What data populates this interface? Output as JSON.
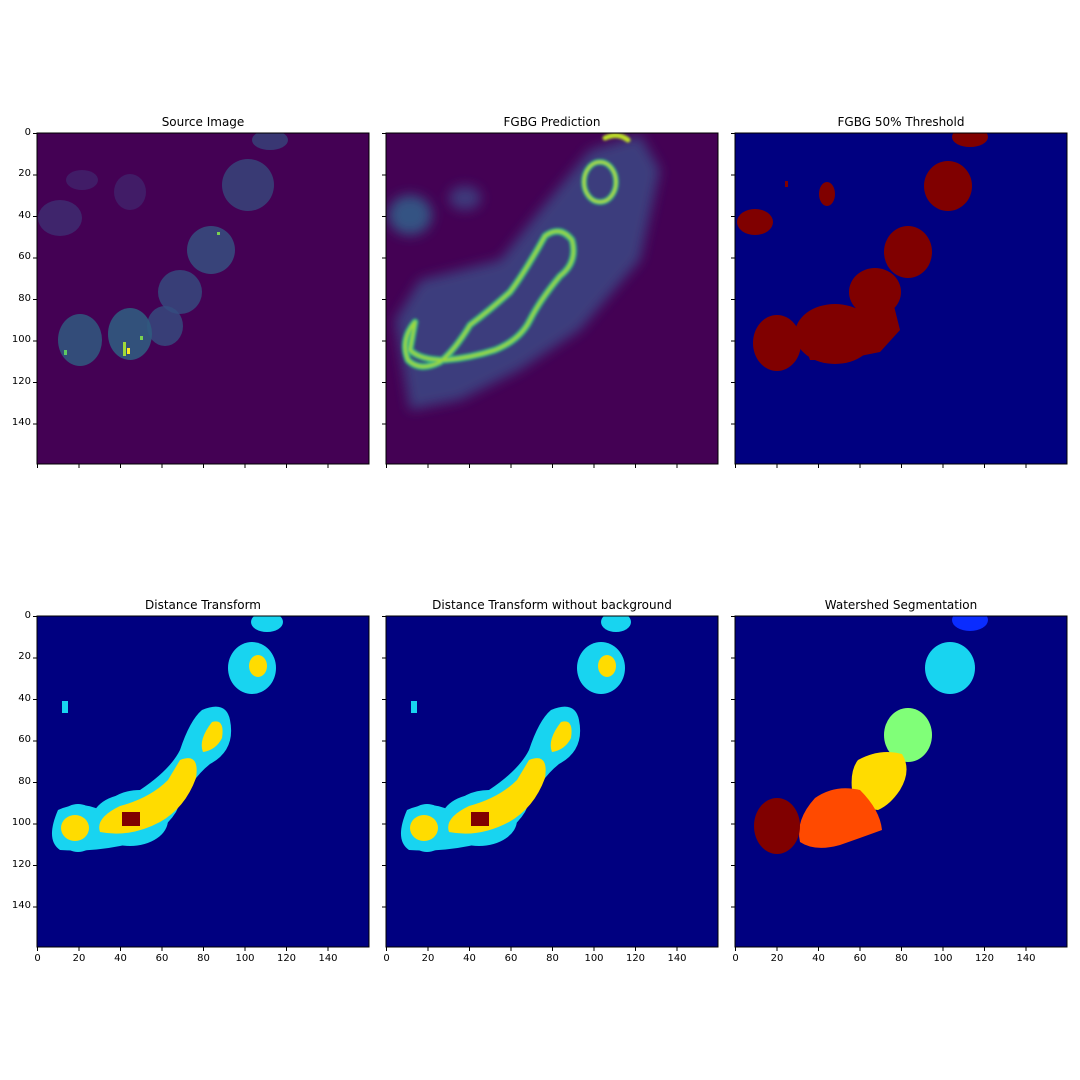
{
  "figure": {
    "panels": [
      {
        "title": "Source Image",
        "colormap": "viridis",
        "content": "source"
      },
      {
        "title": "FGBG Prediction",
        "colormap": "viridis",
        "content": "prediction"
      },
      {
        "title": "FGBG 50% Threshold",
        "colormap": "jet",
        "content": "threshold"
      },
      {
        "title": "Distance Transform",
        "colormap": "jet",
        "content": "distance"
      },
      {
        "title": "Distance Transform without background",
        "colormap": "jet",
        "content": "distance_nobg"
      },
      {
        "title": "Watershed Segmentation",
        "colormap": "jet",
        "content": "watershed"
      }
    ],
    "y_ticks": [
      "0",
      "20",
      "40",
      "60",
      "80",
      "100",
      "120",
      "140"
    ],
    "x_ticks": [
      "0",
      "20",
      "40",
      "60",
      "80",
      "100",
      "120",
      "140"
    ],
    "colors": {
      "viridis_bg": "#440154",
      "jet_bg": "#000080",
      "jet_darkred": "#800000",
      "jet_cyan": "#18d4f0",
      "jet_yellow": "#ffdc00",
      "jet_green": "#80ff78",
      "jet_orange": "#ff4a00",
      "jet_blue": "#0a2cff"
    }
  }
}
